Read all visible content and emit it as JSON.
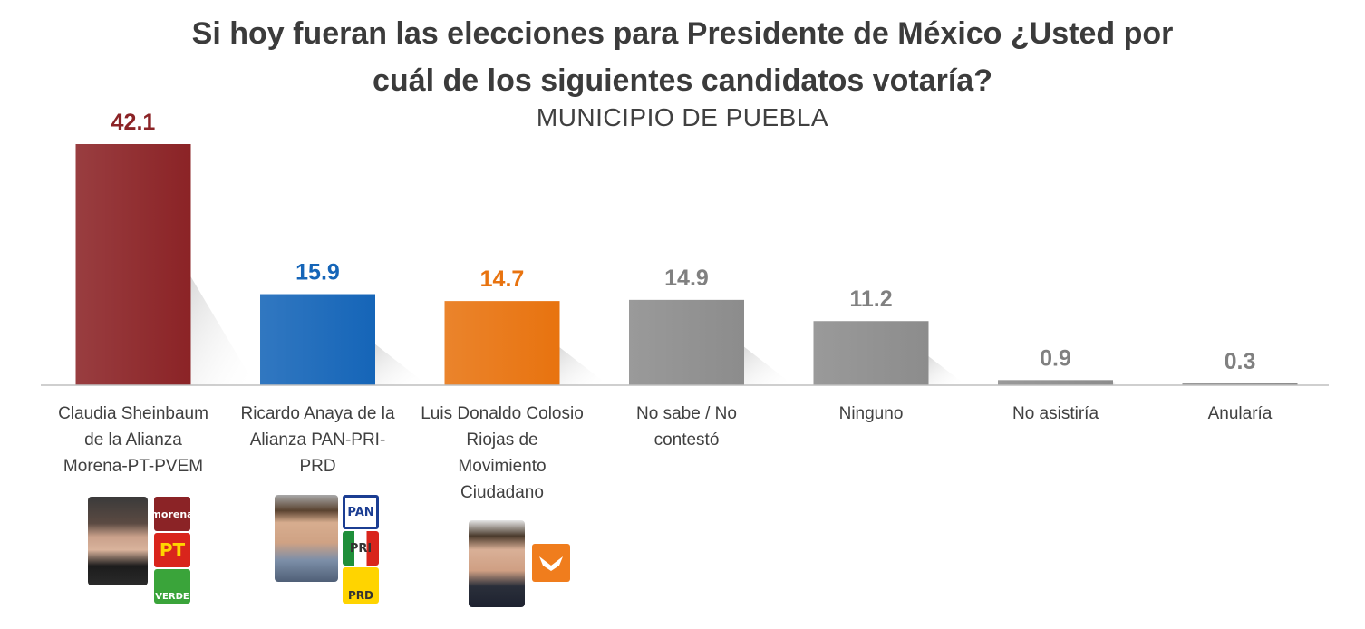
{
  "header": {
    "title_line1": "Si hoy fueran las elecciones para Presidente de México ¿Usted por",
    "title_line2": "cuál de los siguientes candidatos votaría?",
    "subtitle": "MUNICIPIO DE PUEBLA"
  },
  "chart_data": {
    "type": "bar",
    "title": "Si hoy fueran las elecciones para Presidente de México ¿Usted por cuál de los siguientes candidatos votaría?",
    "subtitle": "MUNICIPIO DE PUEBLA",
    "categories": [
      "Claudia Sheinbaum de la Alianza Morena-PT-PVEM",
      "Ricardo Anaya de la Alianza PAN-PRI-PRD",
      "Luis Donaldo Colosio Riojas de Movimiento Ciudadano",
      "No sabe / No contestó",
      "Ninguno",
      "No asistiría",
      "Anularía"
    ],
    "category_lines": [
      [
        "Claudia Sheinbaum",
        "de la Alianza",
        "Morena-PT-PVEM"
      ],
      [
        "Ricardo Anaya de la",
        "Alianza PAN-PRI-",
        "PRD"
      ],
      [
        "Luis Donaldo Colosio",
        "Riojas de",
        "Movimiento",
        "Ciudadano"
      ],
      [
        "No sabe / No",
        "contestó"
      ],
      [
        "Ninguno"
      ],
      [
        "No asistiría"
      ],
      [
        "Anularía"
      ]
    ],
    "values": [
      42.1,
      15.9,
      14.7,
      14.9,
      11.2,
      0.9,
      0.3
    ],
    "value_labels": [
      "42.1",
      "15.9",
      "14.7",
      "14.9",
      "11.2",
      "0.9",
      "0.3"
    ],
    "colors": [
      "#8b2326",
      "#1565b8",
      "#e8730f",
      "#8c8c8c",
      "#8c8c8c",
      "#8c8c8c",
      "#8c8c8c"
    ],
    "label_colors": [
      "#8b2326",
      "#1565b8",
      "#e8730f",
      "#808080",
      "#808080",
      "#808080",
      "#808080"
    ],
    "ylim": [
      0,
      42.1
    ],
    "grid": false,
    "legend": "none",
    "xlabel": "",
    "ylabel": ""
  },
  "logos": {
    "morena": "morena",
    "pt": "PT",
    "verde": "VERDE",
    "pan": "PAN",
    "pri": "PRI",
    "prd": "PRD"
  },
  "icons": [
    "candidate-photo",
    "party-logo"
  ]
}
